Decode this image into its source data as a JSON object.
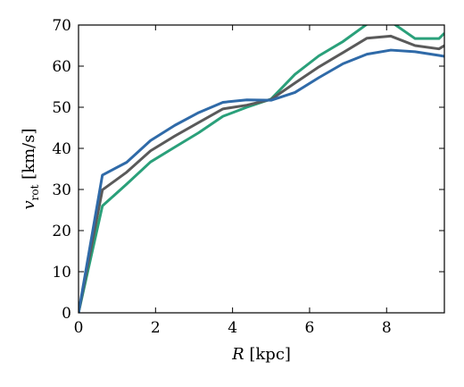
{
  "chart_data": {
    "type": "line",
    "xlabel": "R [kpc]",
    "ylabel": "v_rot [km/s]",
    "xlim": [
      0,
      9.5
    ],
    "ylim": [
      0,
      70
    ],
    "xticks": [
      0,
      2,
      4,
      6,
      8
    ],
    "yticks": [
      0,
      10,
      20,
      30,
      40,
      50,
      60,
      70
    ],
    "grid": false,
    "series": [
      {
        "color": "#2aa07a",
        "x": [
          0,
          0.62,
          1.25,
          1.87,
          2.5,
          3.12,
          3.75,
          4.37,
          5.0,
          5.62,
          6.24,
          6.87,
          7.49,
          8.11,
          8.74,
          9.36,
          9.5
        ],
        "y": [
          0,
          26.0,
          31.3,
          36.7,
          40.3,
          43.8,
          47.8,
          50.0,
          52.0,
          58.0,
          62.5,
          66.0,
          70.2,
          70.8,
          66.7,
          66.7,
          68.0
        ]
      },
      {
        "color": "#5a5a5a",
        "x": [
          0,
          0.62,
          1.25,
          1.87,
          2.5,
          3.12,
          3.75,
          4.37,
          5.0,
          5.62,
          6.24,
          6.87,
          7.49,
          8.11,
          8.74,
          9.36,
          9.5
        ],
        "y": [
          0,
          29.9,
          34.2,
          39.4,
          43.0,
          46.3,
          49.6,
          50.5,
          51.9,
          55.9,
          59.8,
          63.3,
          66.8,
          67.3,
          65.0,
          64.2,
          65.0
        ]
      },
      {
        "color": "#2f6aa8",
        "x": [
          0,
          0.62,
          1.25,
          1.87,
          2.5,
          3.12,
          3.75,
          4.37,
          5.0,
          5.62,
          6.24,
          6.87,
          7.49,
          8.11,
          8.74,
          9.36,
          9.5
        ],
        "y": [
          0,
          33.5,
          36.6,
          41.9,
          45.6,
          48.7,
          51.2,
          51.8,
          51.7,
          53.6,
          57.2,
          60.6,
          62.9,
          63.9,
          63.5,
          62.6,
          62.4
        ]
      }
    ]
  }
}
